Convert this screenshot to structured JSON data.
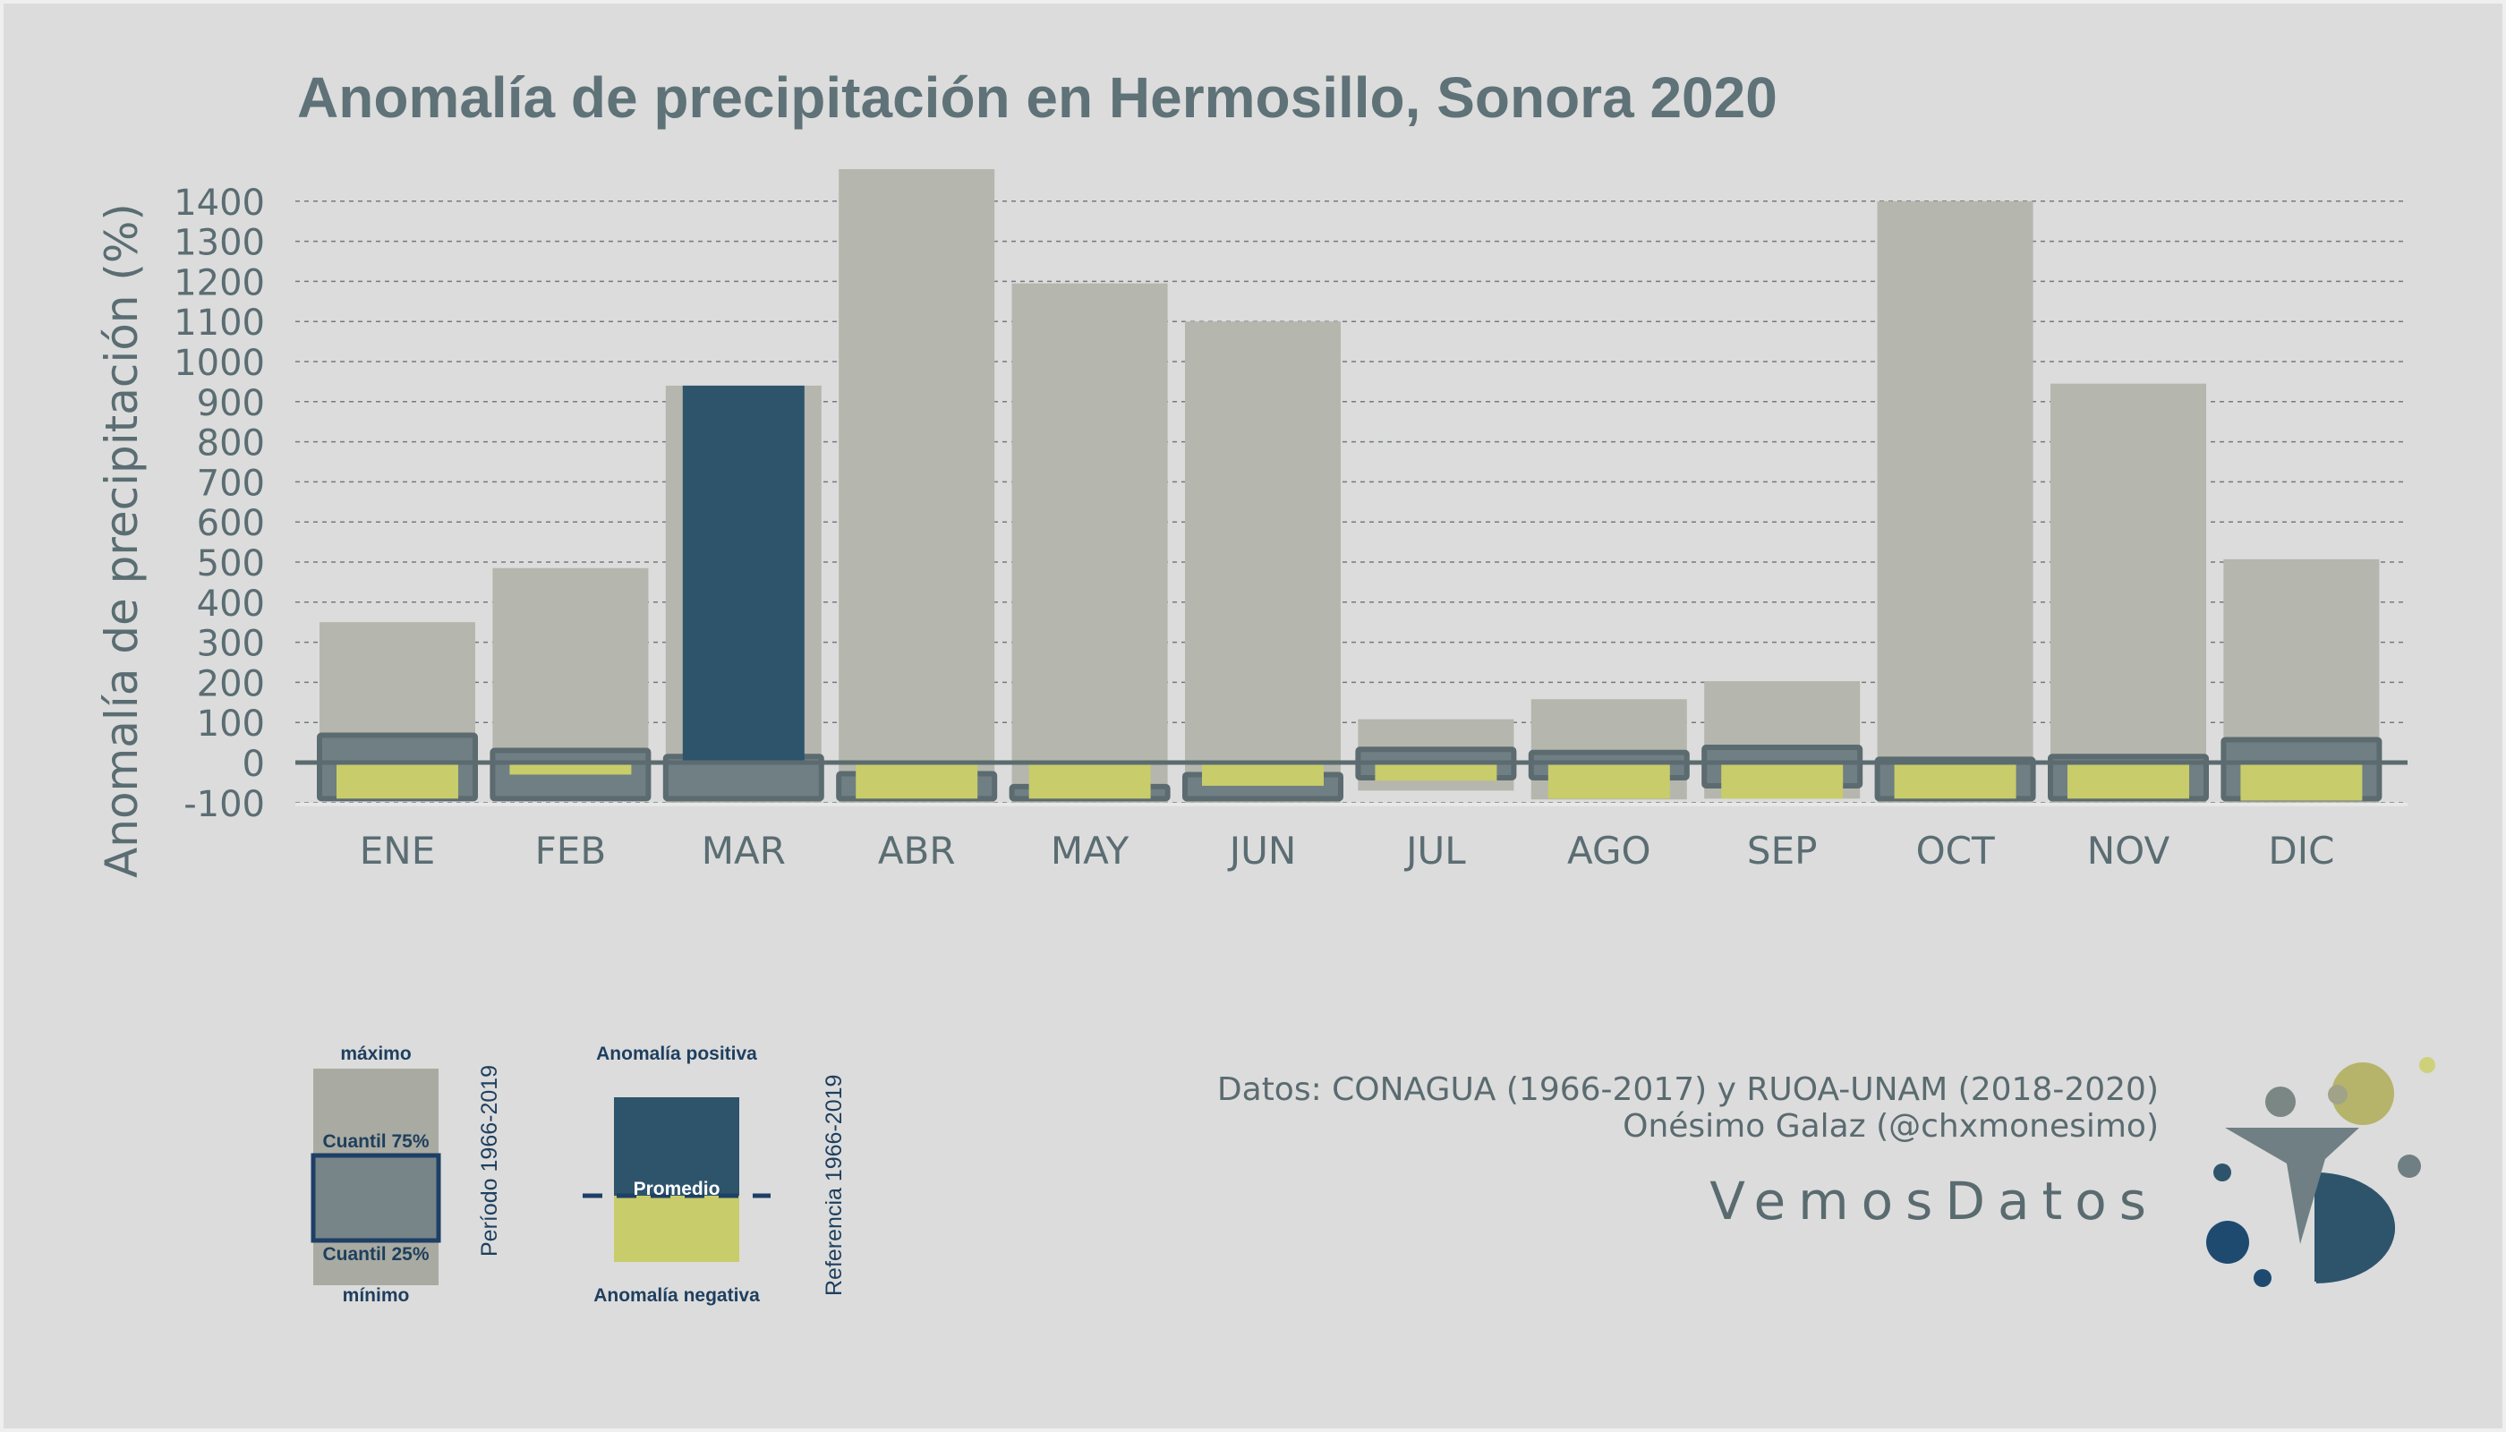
{
  "title": "Anomalía de precipitación en Hermosillo, Sonora 2020",
  "chart_data": {
    "type": "bar",
    "title": "Anomalía de precipitación en Hermosillo, Sonora 2020",
    "xlabel": "",
    "ylabel": "Anomalía de precipitación (%)",
    "ylim": [
      -100,
      1480
    ],
    "yticks": [
      -100,
      0,
      100,
      200,
      300,
      400,
      500,
      600,
      700,
      800,
      900,
      1000,
      1100,
      1200,
      1300,
      1400
    ],
    "grid": "horizontal dashed",
    "categories": [
      "ENE",
      "FEB",
      "MAR",
      "ABR",
      "MAY",
      "JUN",
      "JUL",
      "AGO",
      "SEP",
      "OCT",
      "NOV",
      "DIC"
    ],
    "series": [
      {
        "name": "máximo",
        "values": [
          350,
          485,
          940,
          1480,
          1195,
          1100,
          108,
          158,
          203,
          1400,
          945,
          507
        ]
      },
      {
        "name": "mínimo",
        "values": [
          -93,
          -75,
          -100,
          -100,
          -100,
          -100,
          -70,
          -92,
          -90,
          -100,
          -100,
          -100
        ]
      },
      {
        "name": "Cuantil 75%",
        "values": [
          68,
          30,
          15,
          -28,
          -60,
          -30,
          33,
          25,
          38,
          8,
          15,
          57
        ]
      },
      {
        "name": "Cuantil 25%",
        "values": [
          -90,
          -90,
          -90,
          -90,
          -90,
          -90,
          -38,
          -38,
          -58,
          -90,
          -90,
          -90
        ]
      },
      {
        "name": "2020",
        "values": [
          -90,
          -30,
          940,
          -90,
          -90,
          -58,
          -45,
          -90,
          -90,
          -90,
          -90,
          -95
        ]
      }
    ],
    "colors": {
      "range": "#b5b6ad",
      "quartile": "#6f7f83",
      "quartile_edge": "#5b6b70",
      "positive": "#2d546b",
      "negative": "#c8cc6a",
      "grid": "#5a6469",
      "axis_text": "#5a6d72"
    }
  },
  "legend": {
    "range": {
      "max": "máximo",
      "q75": "Cuantil 75%",
      "q25": "Cuantil 25%",
      "min": "mínimo",
      "period": "Período 1966-2019"
    },
    "anomaly": {
      "positive": "Anomalía positiva",
      "average": "Promedio",
      "negative": "Anomalía negativa",
      "reference": "Referencia 1966-2019"
    }
  },
  "credits": {
    "data": "Datos: CONAGUA (1966-2017) y RUOA-UNAM (2018-2020)",
    "author": "Onésimo Galaz (@chxmonesimo)",
    "brand": "VemosDatos"
  }
}
